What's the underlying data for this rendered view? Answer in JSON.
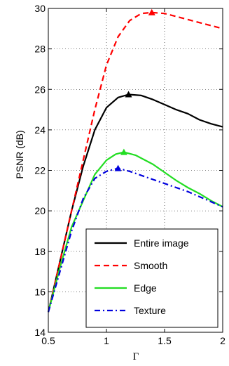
{
  "chart_data": {
    "type": "line",
    "title": "",
    "xlabel": "Γ",
    "ylabel": "PSNR (dB)",
    "xlim": [
      0.5,
      2
    ],
    "ylim": [
      14,
      30
    ],
    "x_ticks": [
      "0.5",
      "1",
      "1.5",
      "2"
    ],
    "y_ticks": [
      "14",
      "16",
      "18",
      "20",
      "22",
      "24",
      "26",
      "28",
      "30"
    ],
    "grid": "dotted",
    "legend_position": "bottom-right",
    "series": [
      {
        "name": "Entire image",
        "color": "#000000",
        "dash": "solid",
        "peak": [
          1.19,
          25.75
        ],
        "x": [
          0.5,
          0.6,
          0.7,
          0.8,
          0.9,
          1.0,
          1.1,
          1.19,
          1.3,
          1.4,
          1.5,
          1.6,
          1.7,
          1.8,
          1.9,
          2.0
        ],
        "y": [
          15.0,
          17.5,
          20.0,
          22.2,
          24.0,
          25.1,
          25.6,
          25.75,
          25.7,
          25.5,
          25.25,
          25.0,
          24.8,
          24.5,
          24.3,
          24.15
        ]
      },
      {
        "name": "Smooth",
        "color": "#ff0000",
        "dash": "dashed",
        "peak": [
          1.39,
          29.8
        ],
        "x": [
          0.5,
          0.6,
          0.7,
          0.8,
          0.9,
          1.0,
          1.1,
          1.2,
          1.3,
          1.39,
          1.5,
          1.6,
          1.7,
          1.8,
          1.9,
          2.0
        ],
        "y": [
          15.0,
          17.5,
          20.0,
          22.5,
          25.0,
          27.2,
          28.6,
          29.4,
          29.75,
          29.8,
          29.75,
          29.6,
          29.45,
          29.3,
          29.15,
          29.0
        ]
      },
      {
        "name": "Edge",
        "color": "#22dd22",
        "dash": "solid",
        "peak": [
          1.15,
          22.9
        ],
        "x": [
          0.5,
          0.6,
          0.7,
          0.8,
          0.9,
          1.0,
          1.08,
          1.15,
          1.25,
          1.4,
          1.5,
          1.6,
          1.7,
          1.8,
          1.9,
          2.0
        ],
        "y": [
          15.0,
          17.2,
          19.2,
          20.5,
          21.8,
          22.5,
          22.8,
          22.9,
          22.75,
          22.3,
          21.9,
          21.5,
          21.15,
          20.85,
          20.5,
          20.2
        ]
      },
      {
        "name": "Texture",
        "color": "#0000dd",
        "dash": "dash-dot",
        "peak": [
          1.1,
          22.1
        ],
        "x": [
          0.5,
          0.6,
          0.7,
          0.8,
          0.9,
          1.0,
          1.1,
          1.2,
          1.3,
          1.4,
          1.5,
          1.6,
          1.7,
          1.8,
          1.9,
          2.0
        ],
        "y": [
          15.0,
          17.0,
          19.0,
          20.6,
          21.6,
          21.95,
          22.1,
          21.95,
          21.75,
          21.55,
          21.35,
          21.15,
          20.95,
          20.7,
          20.45,
          20.2
        ]
      }
    ]
  }
}
